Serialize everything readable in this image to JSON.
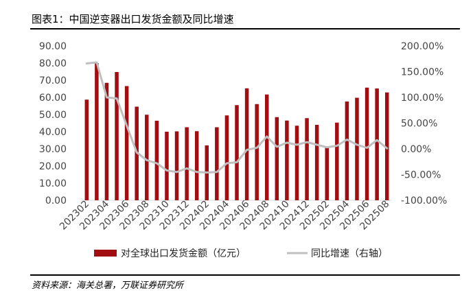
{
  "header": {
    "title": "图表1：中国逆变器出口发货金额及同比增速"
  },
  "footer": {
    "source": "资料来源：海关总署，万联证券研究所"
  },
  "colors": {
    "bar": "#A00E12",
    "line": "#BFBFBF",
    "axis": "#444444"
  },
  "chart_data": {
    "type": "bar",
    "categories": [
      "202302",
      "202303",
      "202304",
      "202305",
      "202306",
      "202307",
      "202308",
      "202309",
      "202310",
      "202311",
      "202312",
      "202401",
      "202402",
      "202403",
      "202404",
      "202405",
      "202406",
      "202407",
      "202408",
      "202409",
      "202410",
      "202411",
      "202412",
      "202501",
      "202502",
      "202503",
      "202504",
      "202505",
      "202506",
      "202507",
      "202508"
    ],
    "x_tick_labels": [
      "202302",
      "202304",
      "202306",
      "202308",
      "202310",
      "202312",
      "202402",
      "202404",
      "202406",
      "202408",
      "202410",
      "202412",
      "202502",
      "202504",
      "202506",
      "202508"
    ],
    "series": [
      {
        "name": "对全球出口发货金额（亿元）",
        "kind": "bar",
        "axis": "left",
        "values": [
          58.7,
          80.0,
          68.5,
          74.8,
          66.6,
          54.6,
          49.9,
          46.4,
          40.0,
          40.2,
          42.6,
          40.3,
          32.0,
          42.6,
          49.5,
          55.5,
          65.3,
          56.1,
          61.7,
          48.5,
          46.5,
          43.5,
          47.9,
          44.0,
          31.2,
          45.3,
          57.6,
          59.8,
          65.7,
          65.2,
          62.9
        ]
      },
      {
        "name": "同比增速（右轴）",
        "kind": "line",
        "axis": "right",
        "values": [
          166,
          168,
          100,
          98,
          45,
          -7,
          -22,
          -28,
          -42,
          -45,
          -38,
          -45,
          -46,
          -45,
          -28,
          -26,
          -2,
          2,
          24,
          4,
          12,
          8,
          13,
          8,
          3,
          6,
          18,
          8,
          2,
          17,
          1
        ]
      }
    ],
    "y_left": {
      "ylim": [
        0,
        90
      ],
      "ticks": [
        "0.00",
        "10.00",
        "20.00",
        "30.00",
        "40.00",
        "50.00",
        "60.00",
        "70.00",
        "80.00",
        "90.00"
      ]
    },
    "y_right": {
      "ylim": [
        -100,
        200
      ],
      "ticks": [
        "-100.00%",
        "-50.00%",
        "0.00%",
        "50.00%",
        "100.00%",
        "150.00%",
        "200.00%"
      ]
    },
    "legend_position": "bottom"
  }
}
